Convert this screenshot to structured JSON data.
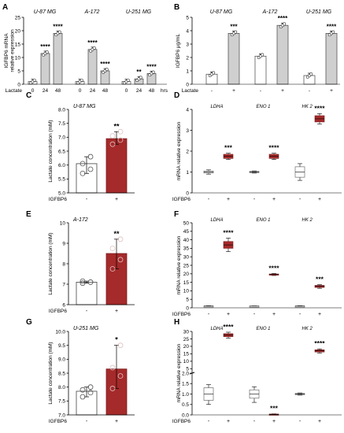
{
  "figure": {
    "colors": {
      "control": "#ffffff",
      "treated_bar": "#a52a2a",
      "gray_bar": "#cfcfcf",
      "stroke": "#444444"
    },
    "panel_letters": [
      "A",
      "B",
      "C",
      "D",
      "E",
      "F",
      "G",
      "H"
    ]
  },
  "chart_data": [
    {
      "panel": "A",
      "type": "bar",
      "ylabel": "IGFBP6 mRNA\nrelative expression",
      "ylim": [
        0,
        25
      ],
      "yticks": [
        "0",
        "5",
        "10",
        "15",
        "20",
        "25"
      ],
      "groups": [
        {
          "title": "U-87 MG",
          "categories": [
            "0",
            "24",
            "48"
          ],
          "values": [
            1.0,
            11.5,
            19.0
          ],
          "significance": [
            "",
            "****",
            "****"
          ]
        },
        {
          "title": "A-172",
          "categories": [
            "0",
            "24",
            "48"
          ],
          "values": [
            1.0,
            13.0,
            5.0
          ],
          "significance": [
            "",
            "****",
            "****"
          ]
        },
        {
          "title": "U-251 MG",
          "categories": [
            "0",
            "24",
            "48"
          ],
          "values": [
            1.0,
            2.0,
            4.0
          ],
          "significance": [
            "",
            "**",
            "****"
          ]
        }
      ],
      "xlabel_left": "Lactate",
      "xlabel_right": "hrs"
    },
    {
      "panel": "B",
      "type": "bar",
      "ylabel": "IGFBP6 μg/mL",
      "ylim": [
        0,
        5
      ],
      "yticks": [
        "0",
        "1",
        "2",
        "3",
        "4",
        "5"
      ],
      "groups": [
        {
          "title": "U-87 MG",
          "categories": [
            "-",
            "+"
          ],
          "values": [
            0.75,
            3.8
          ],
          "significance": [
            "",
            "***"
          ]
        },
        {
          "title": "A-172",
          "categories": [
            "-",
            "+"
          ],
          "values": [
            2.1,
            4.4
          ],
          "significance": [
            "",
            "****"
          ]
        },
        {
          "title": "U-251 MG",
          "categories": [
            "-",
            "+"
          ],
          "values": [
            0.65,
            3.8
          ],
          "significance": [
            "",
            "****"
          ]
        }
      ],
      "xlabel_left": "Lactate"
    },
    {
      "panel": "C",
      "type": "bar",
      "title": "U-87 MG",
      "ylabel": "Lactate concentration (mM)",
      "ylim": [
        5.0,
        8.0
      ],
      "yticks": [
        "5.0",
        "5.5",
        "6.0",
        "6.5",
        "7.0",
        "7.5",
        "8.0"
      ],
      "categories": [
        "-",
        "+"
      ],
      "values": [
        6.05,
        6.95
      ],
      "points": [
        [
          5.7,
          5.85,
          6.05,
          6.3
        ],
        [
          6.75,
          6.9,
          7.05,
          7.2
        ]
      ],
      "significance": [
        "",
        "**"
      ],
      "xlabel": "IGFBP6"
    },
    {
      "panel": "D",
      "type": "box",
      "ylabel": "mRNA relative expression",
      "ylim": [
        0,
        4
      ],
      "yticks": [
        "0",
        "1",
        "2",
        "3",
        "4"
      ],
      "genes": [
        "LDHA",
        "ENO 1",
        "HK 2"
      ],
      "boxes": [
        {
          "min": 0.9,
          "q1": 0.95,
          "median": 1.0,
          "q3": 1.05,
          "max": 1.1
        },
        {
          "min": 1.6,
          "q1": 1.65,
          "median": 1.75,
          "q3": 1.85,
          "max": 1.9
        },
        {
          "min": 0.95,
          "q1": 0.97,
          "median": 1.0,
          "q3": 1.03,
          "max": 1.05
        },
        {
          "min": 1.6,
          "q1": 1.65,
          "median": 1.75,
          "q3": 1.85,
          "max": 1.9
        },
        {
          "min": 0.6,
          "q1": 0.75,
          "median": 1.0,
          "q3": 1.25,
          "max": 1.4
        },
        {
          "min": 3.3,
          "q1": 3.4,
          "median": 3.55,
          "q3": 3.7,
          "max": 3.8
        }
      ],
      "significance": [
        "",
        "***",
        "",
        "****",
        "",
        "****"
      ],
      "xlabel": "IGFBP6"
    },
    {
      "panel": "E",
      "type": "bar",
      "title": "A-172",
      "ylabel": "Lactate concentration (mM)",
      "ylim": [
        6,
        10
      ],
      "yticks": [
        "6",
        "7",
        "8",
        "9",
        "10"
      ],
      "categories": [
        "-",
        "+"
      ],
      "values": [
        7.1,
        8.5
      ],
      "points": [
        [
          7.05,
          7.1,
          7.15,
          7.1
        ],
        [
          7.75,
          8.2,
          8.75,
          9.2
        ]
      ],
      "significance": [
        "",
        "**"
      ],
      "xlabel": "IGFBP6"
    },
    {
      "panel": "F",
      "type": "box",
      "ylabel": "mRNA relative expression",
      "ylim": [
        0,
        50
      ],
      "yticks": [
        "0",
        "5",
        "10",
        "15",
        "20",
        "25",
        "30",
        "35",
        "40",
        "45",
        "50"
      ],
      "genes": [
        "LDHA",
        "ENO 1",
        "HK 2"
      ],
      "boxes": [
        {
          "min": 0.8,
          "q1": 0.9,
          "median": 1.0,
          "q3": 1.1,
          "max": 1.2
        },
        {
          "min": 33,
          "q1": 35,
          "median": 37,
          "q3": 39,
          "max": 41
        },
        {
          "min": 0.9,
          "q1": 0.95,
          "median": 1.0,
          "q3": 1.05,
          "max": 1.1
        },
        {
          "min": 19.0,
          "q1": 19.3,
          "median": 19.6,
          "q3": 19.9,
          "max": 20.2
        },
        {
          "min": 0.8,
          "q1": 0.9,
          "median": 1.0,
          "q3": 1.1,
          "max": 1.2
        },
        {
          "min": 11.5,
          "q1": 12.0,
          "median": 12.6,
          "q3": 13.2,
          "max": 13.6
        }
      ],
      "significance": [
        "",
        "****",
        "",
        "****",
        "",
        "***"
      ],
      "xlabel": "IGFBP6"
    },
    {
      "panel": "G",
      "type": "bar",
      "title": "U-251 MG",
      "ylabel": "Lactate concentration (mM)",
      "ylim": [
        7.0,
        10.0
      ],
      "yticks": [
        "7.0",
        "7.5",
        "8.0",
        "8.5",
        "9.0",
        "9.5",
        "10.0"
      ],
      "categories": [
        "-",
        "+"
      ],
      "values": [
        7.85,
        8.65
      ],
      "points": [
        [
          7.65,
          7.8,
          7.9,
          8.0
        ],
        [
          7.95,
          8.4,
          8.7,
          9.5
        ]
      ],
      "significance": [
        "",
        "*"
      ],
      "xlabel": "IGFBP6"
    },
    {
      "panel": "H",
      "type": "box",
      "ylabel": "mRNA relative expression",
      "ylim": [
        0,
        30
      ],
      "yticks": [
        "0.0",
        "0.5",
        "1.0",
        "1.5",
        "2.0",
        "5",
        "10",
        "15",
        "20",
        "25",
        "30"
      ],
      "axis_break": {
        "lower": [
          0,
          2
        ],
        "upper": [
          2,
          30
        ]
      },
      "genes": [
        "LDHA",
        "ENO 1",
        "HK 2"
      ],
      "boxes": [
        {
          "min": 0.5,
          "q1": 0.7,
          "median": 1.0,
          "q3": 1.3,
          "max": 1.45
        },
        {
          "min": 25.5,
          "q1": 26.5,
          "median": 27.5,
          "q3": 28.5,
          "max": 29.5
        },
        {
          "min": 0.6,
          "q1": 0.8,
          "median": 1.0,
          "q3": 1.2,
          "max": 1.35
        },
        {
          "min": 0.01,
          "q1": 0.02,
          "median": 0.03,
          "q3": 0.04,
          "max": 0.05
        },
        {
          "min": 0.95,
          "q1": 0.97,
          "median": 1.0,
          "q3": 1.03,
          "max": 1.05
        },
        {
          "min": 15.5,
          "q1": 16.2,
          "median": 17.0,
          "q3": 17.7,
          "max": 18.3
        }
      ],
      "significance": [
        "",
        "****",
        "",
        "***",
        "",
        "****"
      ],
      "xlabel": "IGFBP6"
    }
  ]
}
